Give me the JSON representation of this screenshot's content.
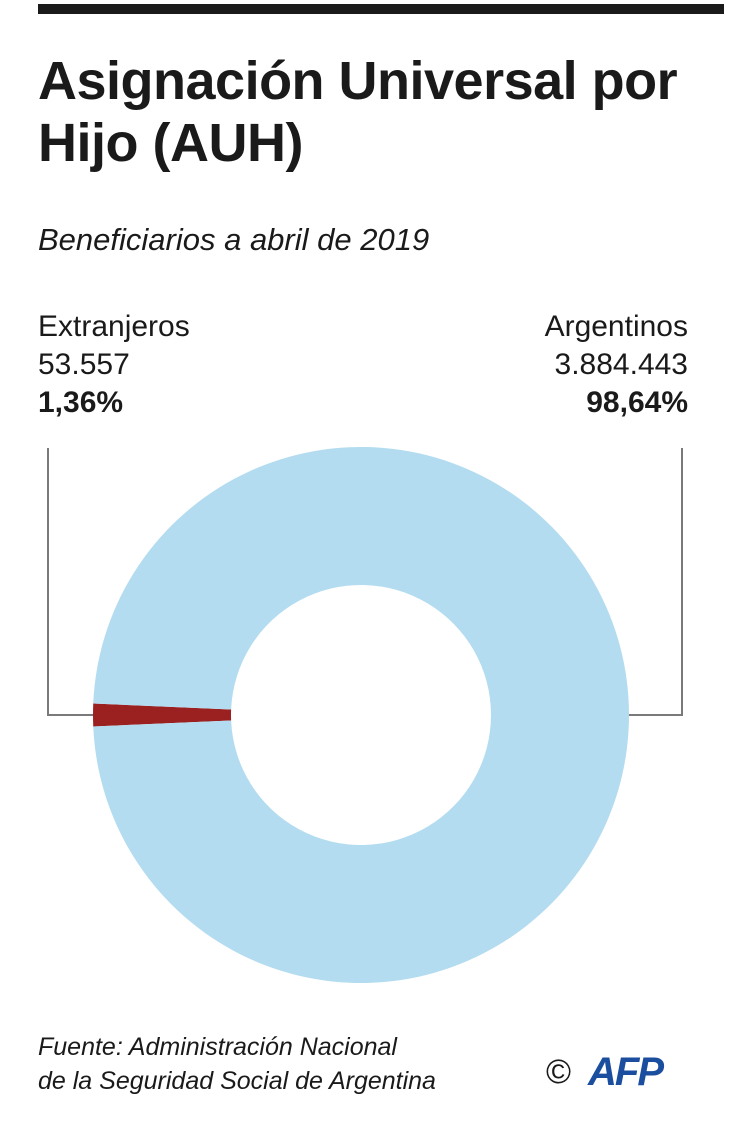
{
  "header": {
    "title": "Asignación Universal por Hijo (AUH)",
    "subtitle": "Beneficiarios a abril de 2019"
  },
  "chart_data": {
    "type": "pie",
    "donut": true,
    "title": "Asignación Universal por Hijo (AUH)",
    "subtitle": "Beneficiarios a abril de 2019",
    "slices": [
      {
        "label": "Extranjeros",
        "count": "53.557",
        "percent_label": "1,36%",
        "value": 1.36,
        "color": "#9b2121"
      },
      {
        "label": "Argentinos",
        "count": "3.884.443",
        "percent_label": "98,64%",
        "value": 98.64,
        "color": "#b3dcf0"
      }
    ],
    "leader_color": "#7a7a7a"
  },
  "footer": {
    "source_line1": "Fuente: Administración Nacional",
    "source_line2": "de la Seguridad Social de Argentina",
    "copyright": "©",
    "logo_text": "AFP"
  }
}
